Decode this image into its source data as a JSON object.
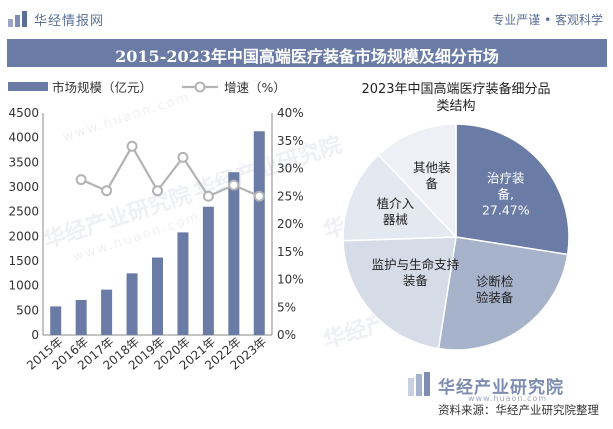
{
  "header": {
    "brand": "华经情报网",
    "slogan": "专业严谨 • 客观科学"
  },
  "title": "2015-2023年中国高端医疗装备市场规模及细分市场",
  "watermark": {
    "brand": "华经产业研究院",
    "url": "www.huaon.com"
  },
  "footer": {
    "source": "资料来源：华经产业研究院整理"
  },
  "colors": {
    "bar": "#6a7ba6",
    "line": "#b3b3b3",
    "title_band": "#6a7ba6",
    "pie": [
      "#6a7ba6",
      "#a7b2cb",
      "#d6dbe8",
      "#e4e8f1",
      "#eef0f5"
    ]
  },
  "chart_data": [
    {
      "type": "bar",
      "categories": [
        "2015年",
        "2016年",
        "2017年",
        "2018年",
        "2019年",
        "2020年",
        "2021年",
        "2022年",
        "2023年"
      ],
      "series": [
        {
          "name": "市场规模（亿元）",
          "type": "bar",
          "axis": "left",
          "values": [
            580,
            710,
            920,
            1250,
            1570,
            2080,
            2600,
            3300,
            4130
          ]
        },
        {
          "name": "增速（%）",
          "type": "line",
          "axis": "right",
          "values": [
            null,
            28,
            26,
            34,
            26,
            32,
            25,
            27,
            25
          ]
        }
      ],
      "y_left": {
        "range": [
          0,
          4500
        ],
        "ticks": [
          "0",
          "500",
          "1000",
          "1500",
          "2000",
          "2500",
          "3000",
          "3500",
          "4000",
          "4500"
        ]
      },
      "y_right": {
        "range": [
          0,
          40
        ],
        "ticks": [
          "0%",
          "5%",
          "10%",
          "15%",
          "20%",
          "25%",
          "30%",
          "35%",
          "40%"
        ]
      },
      "legend_position": "top-left",
      "grid": false
    },
    {
      "type": "pie",
      "title": "2023年中国高端医疗装备细分品类结构",
      "slices": [
        {
          "label": "治疗装备,",
          "value_label": "27.47%",
          "value": 27.47
        },
        {
          "label": "诊断检验装备",
          "value": 25.0
        },
        {
          "label": "监护与生命支持装备",
          "value": 22.0
        },
        {
          "label": "植介入器械",
          "value": 13.5
        },
        {
          "label": "其他装备",
          "value": 12.03
        }
      ]
    }
  ]
}
